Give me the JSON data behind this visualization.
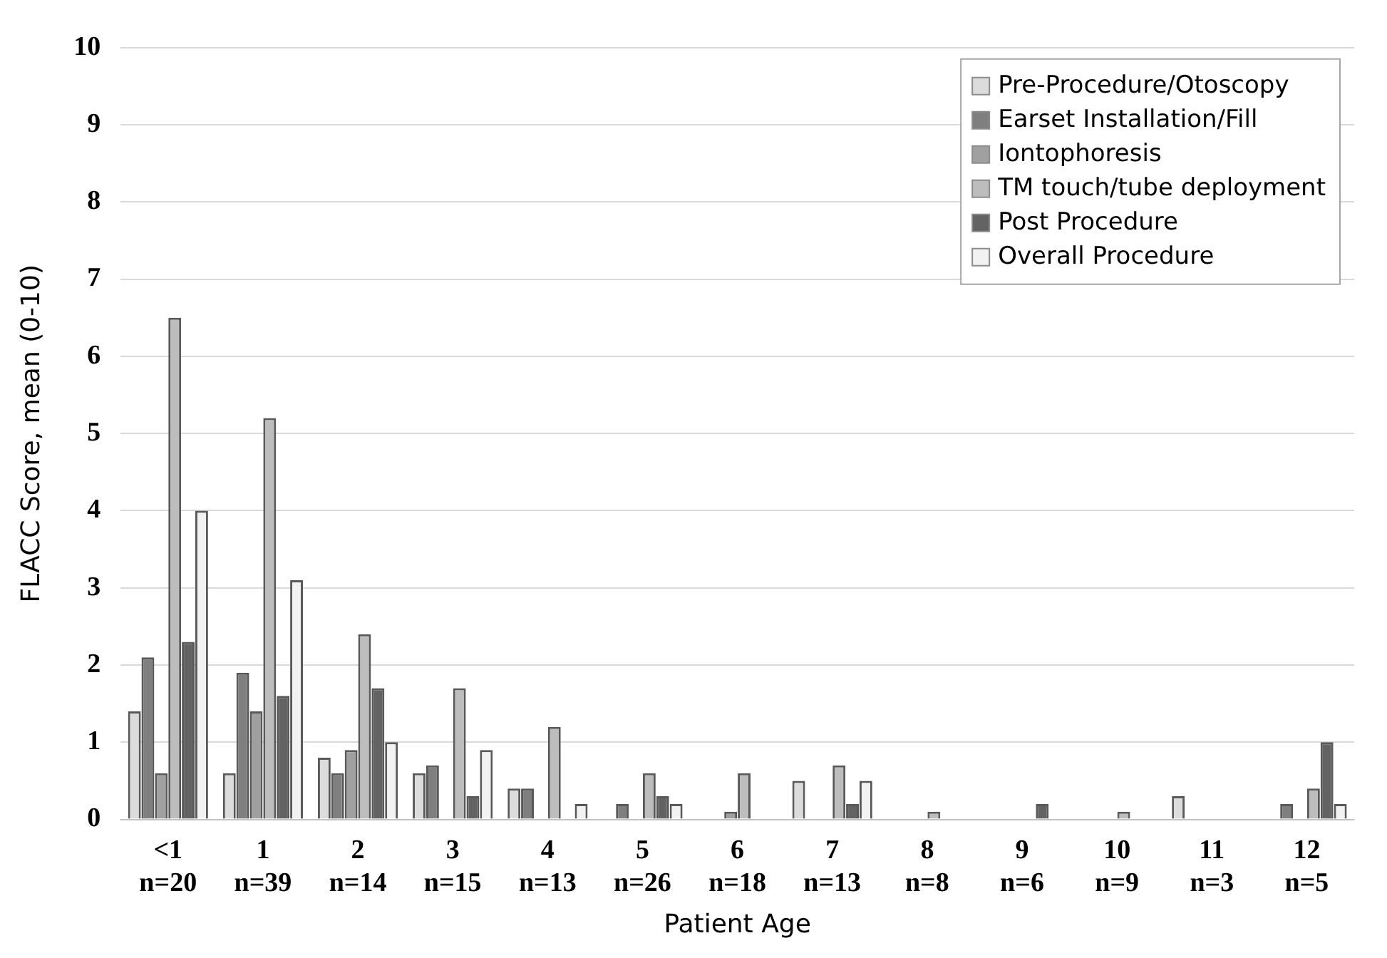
{
  "chart_data": {
    "type": "bar",
    "xlabel": "Patient Age",
    "ylabel": "FLACC Score, mean (0-10)",
    "categories": [
      "<1\nn=20",
      "1\nn=39",
      "2\nn=14",
      "3\nn=15",
      "4\nn=13",
      "5\nn=26",
      "6\nn=18",
      "7\nn=13",
      "8\nn=8",
      "9\nn=6",
      "10\nn=9",
      "11\nn=3",
      "12\nn=5"
    ],
    "series": [
      {
        "name": "Pre-Procedure/Otoscopy",
        "color": "#dcdcdc",
        "values": [
          1.4,
          0.6,
          0.8,
          0.6,
          0.4,
          0,
          0,
          0.5,
          0,
          0,
          0,
          0.3,
          0
        ]
      },
      {
        "name": "Earset Installation/Fill",
        "color": "#7f7f7f",
        "values": [
          2.1,
          1.9,
          0.6,
          0.7,
          0.4,
          0.2,
          0,
          0,
          0,
          0,
          0,
          0,
          0.2
        ]
      },
      {
        "name": "Iontophoresis",
        "color": "#a0a0a0",
        "values": [
          0.6,
          1.4,
          0.9,
          0,
          0,
          0,
          0.1,
          0,
          0,
          0,
          0,
          0,
          0
        ]
      },
      {
        "name": "TM touch/tube deployment",
        "color": "#bdbdbd",
        "values": [
          6.5,
          5.2,
          2.4,
          1.7,
          1.2,
          0.6,
          0.6,
          0.7,
          0.1,
          0,
          0.1,
          0,
          0.4
        ]
      },
      {
        "name": "Post Procedure",
        "color": "#636363",
        "values": [
          2.3,
          1.6,
          1.7,
          0.3,
          0,
          0.3,
          0,
          0.2,
          0,
          0.2,
          0,
          0,
          1.0
        ]
      },
      {
        "name": "Overall Procedure",
        "color": "#f2f2f2",
        "values": [
          4.0,
          3.1,
          1.0,
          0.9,
          0.2,
          0.2,
          0,
          0.5,
          0,
          0,
          0,
          0,
          0.2
        ]
      }
    ],
    "ylim": [
      0,
      10
    ],
    "yticks": [
      0,
      1,
      2,
      3,
      4,
      5,
      6,
      7,
      8,
      9,
      10
    ],
    "grid": "y",
    "legend": "top right"
  }
}
